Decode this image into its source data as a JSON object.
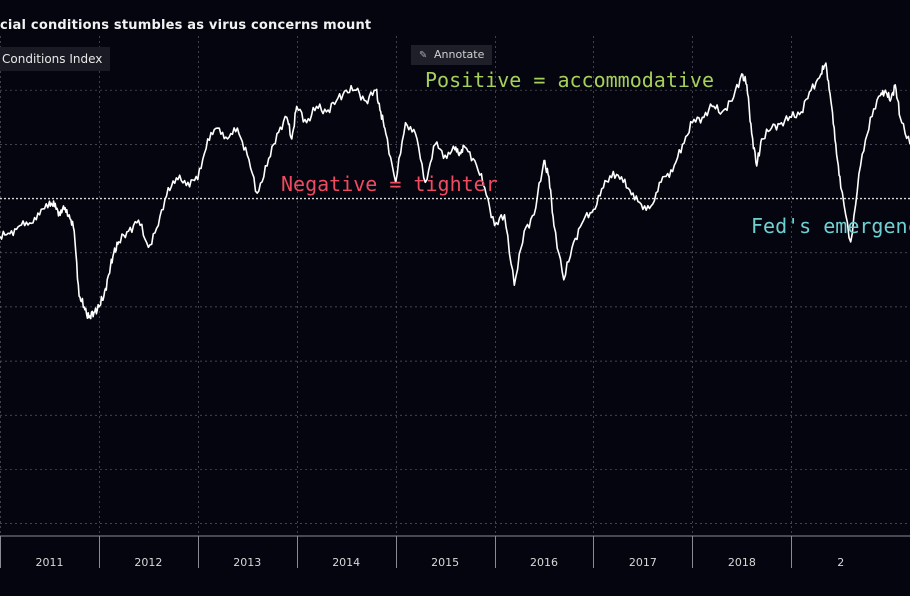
{
  "header": {
    "title": "cial conditions stumbles as virus concerns mount",
    "legend_label": "Conditions Index",
    "annotate_label": "Annotate",
    "annotate_icon": "pencil-icon"
  },
  "annotations": {
    "positive": "Positive = accommodative",
    "negative": "Negative = tighter",
    "fed": "Fed's emergenc"
  },
  "colors": {
    "background": "#05050f",
    "line": "#ffffff",
    "grid": "#5a5a66",
    "positive": "#a6d05a",
    "negative": "#ef4a60",
    "fed": "#6fd0d2"
  },
  "chart_data": {
    "type": "line",
    "title": "cial conditions stumbles as virus concerns mount",
    "series": [
      {
        "name": "Conditions Index",
        "x": [
          2010.5,
          2010.6,
          2010.7,
          2010.8,
          2010.9,
          2011.0,
          2011.05,
          2011.1,
          2011.15,
          2011.2,
          2011.25,
          2011.3,
          2011.35,
          2011.4,
          2011.45,
          2011.5,
          2011.55,
          2011.6,
          2011.65,
          2011.7,
          2011.8,
          2011.9,
          2012.0,
          2012.1,
          2012.2,
          2012.3,
          2012.4,
          2012.5,
          2012.6,
          2012.7,
          2012.8,
          2012.9,
          2013.0,
          2013.1,
          2013.2,
          2013.3,
          2013.4,
          2013.45,
          2013.5,
          2013.6,
          2013.7,
          2013.8,
          2013.9,
          2014.0,
          2014.1,
          2014.2,
          2014.3,
          2014.35,
          2014.4,
          2014.5,
          2014.6,
          2014.7,
          2014.8,
          2014.9,
          2015.0,
          2015.1,
          2015.15,
          2015.2,
          2015.3,
          2015.4,
          2015.5,
          2015.6,
          2015.7,
          2015.8,
          2015.9,
          2016.0,
          2016.05,
          2016.1,
          2016.2,
          2016.3,
          2016.4,
          2016.5,
          2016.6,
          2016.7,
          2016.8,
          2016.9,
          2017.0,
          2017.1,
          2017.2,
          2017.3,
          2017.4,
          2017.5,
          2017.6,
          2017.7,
          2017.8,
          2017.9,
          2018.0,
          2018.05,
          2018.1,
          2018.15,
          2018.2,
          2018.3,
          2018.4,
          2018.5,
          2018.6,
          2018.7,
          2018.8,
          2018.85,
          2018.9,
          2018.95,
          2019.0,
          2019.1,
          2019.2,
          2019.3,
          2019.4,
          2019.45,
          2019.5,
          2019.55,
          2019.6,
          2019.7
        ],
        "values": [
          -0.7,
          -0.65,
          -0.5,
          -0.45,
          -0.3,
          -0.05,
          -0.15,
          -0.25,
          -0.2,
          -0.3,
          -0.6,
          -1.8,
          -2.0,
          -2.2,
          -2.1,
          -2.0,
          -1.8,
          -1.4,
          -1.0,
          -0.8,
          -0.6,
          -0.4,
          -0.9,
          -0.5,
          0.2,
          0.35,
          0.3,
          0.35,
          1.1,
          1.3,
          1.1,
          1.3,
          0.8,
          0.1,
          0.6,
          1.2,
          1.5,
          1.1,
          1.7,
          1.4,
          1.7,
          1.6,
          1.8,
          2.0,
          2.0,
          1.8,
          2.0,
          1.6,
          1.2,
          0.3,
          1.4,
          1.2,
          0.3,
          1.0,
          0.8,
          0.9,
          0.85,
          0.95,
          0.7,
          0.2,
          -0.5,
          -0.3,
          -1.6,
          -0.6,
          -0.3,
          0.7,
          0.4,
          -0.5,
          -1.5,
          -0.8,
          -0.4,
          -0.2,
          0.2,
          0.5,
          0.3,
          0.1,
          -0.2,
          -0.1,
          0.4,
          0.5,
          1.0,
          1.4,
          1.5,
          1.7,
          1.6,
          1.8,
          2.3,
          2.1,
          1.2,
          0.6,
          1.1,
          1.3,
          1.4,
          1.5,
          1.6,
          2.0,
          2.3,
          2.5,
          1.8,
          1.0,
          0.2,
          -0.8,
          0.6,
          1.5,
          1.9,
          2.0,
          1.8,
          2.1,
          1.5,
          1.0
        ]
      }
    ],
    "x_ticks": [
      "2011",
      "2012",
      "2013",
      "2014",
      "2015",
      "2016",
      "2017",
      "2018",
      "2"
    ],
    "x_tick_values": [
      2011,
      2012,
      2013,
      2014,
      2015,
      2016,
      2017,
      2018,
      2019
    ],
    "xlim": [
      2010.5,
      2019.7
    ],
    "ylim": [
      -8,
      3
    ],
    "y_grid_values": [
      2,
      1,
      0,
      -1,
      -2,
      -3,
      -4,
      -5,
      -6,
      -7
    ],
    "zero_line": true,
    "grid": true,
    "legend": "top-left"
  }
}
